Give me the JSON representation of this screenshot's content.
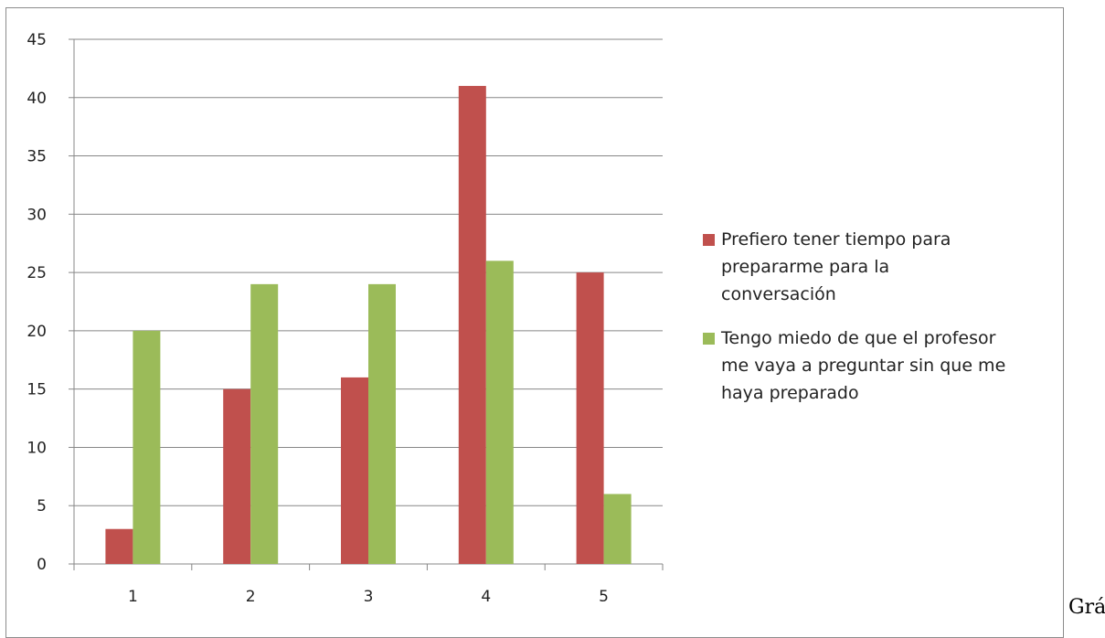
{
  "trailing_text": "Grá",
  "chart_data": {
    "type": "bar",
    "title": "",
    "xlabel": "",
    "ylabel": "",
    "categories": [
      "1",
      "2",
      "3",
      "4",
      "5"
    ],
    "ylim": [
      0,
      45
    ],
    "yticks": [
      0,
      5,
      10,
      15,
      20,
      25,
      30,
      35,
      40,
      45
    ],
    "grid": true,
    "legend_position": "right",
    "series": [
      {
        "name": "Prefiero tener tiempo para prepararme para la conversación",
        "legend_lines": [
          "Prefiero tener tiempo para",
          "prepararme para la",
          "conversación"
        ],
        "color": "#c0504d",
        "values": [
          3,
          15,
          16,
          41,
          25
        ]
      },
      {
        "name": "Tengo miedo de que el profesor me vaya a preguntar sin que me haya preparado",
        "legend_lines": [
          "Tengo miedo de que el profesor",
          "me vaya a preguntar sin que me",
          "haya preparado"
        ],
        "color": "#9bbb59",
        "values": [
          20,
          24,
          24,
          26,
          6
        ]
      }
    ]
  }
}
